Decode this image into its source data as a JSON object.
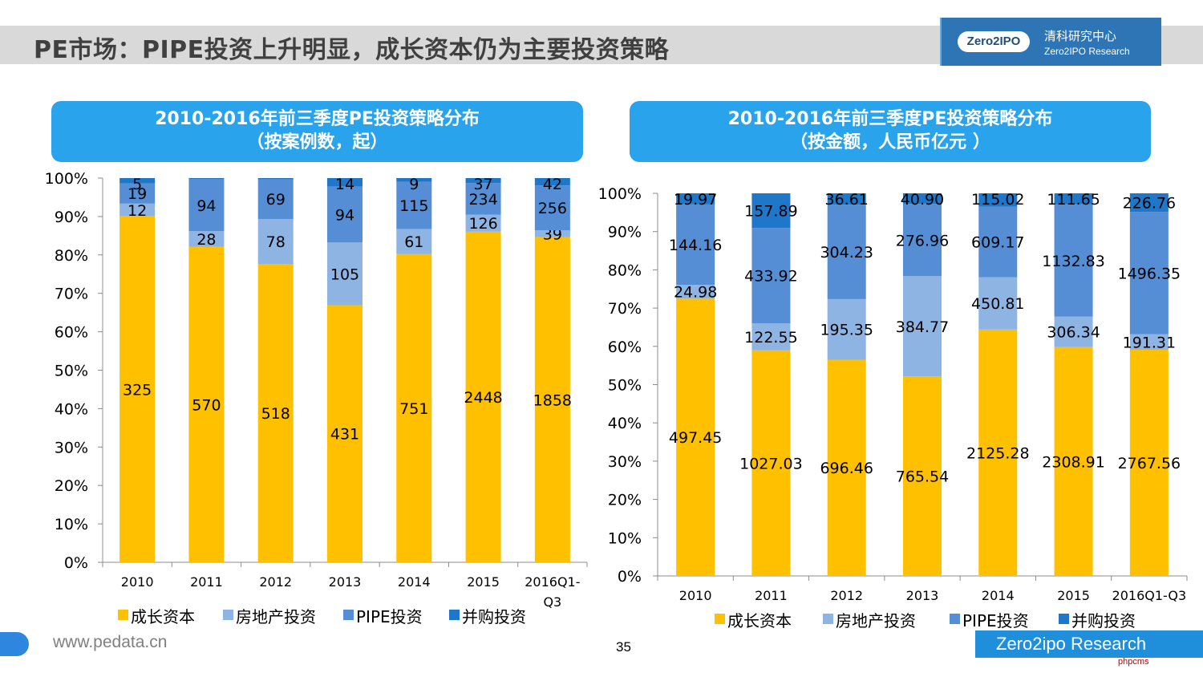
{
  "page": {
    "title": "PE市场：PIPE投资上升明显，成长资本仍为主要投资策略",
    "logo_mark": "Zero2IPO",
    "logo_cn": "清科研究中心",
    "logo_en": "Zero2IPO Research",
    "footer_url": "www.pedata.cn",
    "page_number": "35",
    "brand_bar": "Zero2ipo Research",
    "watermark": "phpcms"
  },
  "colors": {
    "growth": "#ffc000",
    "realestate": "#8eb4e3",
    "pipe": "#558ed5",
    "ma": "#1f77c9",
    "header_bg": "#29a3ec"
  },
  "chart_data": [
    {
      "type": "bar",
      "stacked": "percent",
      "title": "2010-2016年前三季度PE投资策略分布",
      "subtitle": "（按案例数，起）",
      "categories": [
        "2010",
        "2011",
        "2012",
        "2013",
        "2014",
        "2015",
        "2016Q1-Q3"
      ],
      "y_ticks": [
        "0%",
        "10%",
        "20%",
        "30%",
        "40%",
        "50%",
        "60%",
        "70%",
        "80%",
        "90%",
        "100%"
      ],
      "ylim": [
        0,
        100
      ],
      "series": [
        {
          "name": "成长资本",
          "values": [
            325,
            570,
            518,
            431,
            751,
            2448,
            1858
          ],
          "labels": [
            "325",
            "570",
            "518",
            "431",
            "751",
            "2448",
            "1858"
          ]
        },
        {
          "name": "房地产投资",
          "values": [
            12,
            28,
            78,
            105,
            61,
            126,
            39
          ],
          "labels": [
            "12",
            "28",
            "78",
            "105",
            "61",
            "126",
            "39"
          ]
        },
        {
          "name": "PIPE投资",
          "values": [
            19,
            94,
            69,
            94,
            115,
            234,
            256
          ],
          "labels": [
            "19",
            "94",
            "69",
            "94",
            "115",
            "234",
            "256"
          ]
        },
        {
          "name": "并购投资",
          "values": [
            5,
            2,
            2,
            14,
            9,
            37,
            42
          ],
          "labels": [
            "5",
            "",
            "",
            "14",
            "9",
            "37",
            "42"
          ]
        }
      ]
    },
    {
      "type": "bar",
      "stacked": "percent",
      "title": "2010-2016年前三季度PE投资策略分布",
      "subtitle": "（按金额，人民币亿元 ）",
      "categories": [
        "2010",
        "2011",
        "2012",
        "2013",
        "2014",
        "2015",
        "2016Q1-Q3"
      ],
      "y_ticks": [
        "0%",
        "10%",
        "20%",
        "30%",
        "40%",
        "50%",
        "60%",
        "70%",
        "80%",
        "90%",
        "100%"
      ],
      "ylim": [
        0,
        100
      ],
      "series": [
        {
          "name": "成长资本",
          "values": [
            497.45,
            1027.03,
            696.46,
            765.54,
            2125.28,
            2308.91,
            2767.56
          ],
          "labels": [
            "497.45",
            "1027.03",
            "696.46",
            "765.54",
            "2125.28",
            "2308.91",
            "2767.56"
          ]
        },
        {
          "name": "房地产投资",
          "values": [
            24.98,
            122.55,
            195.35,
            384.77,
            450.81,
            306.34,
            191.31
          ],
          "labels": [
            "24.98",
            "122.55",
            "195.35",
            "384.77",
            "450.81",
            "306.34",
            "191.31"
          ]
        },
        {
          "name": "PIPE投资",
          "values": [
            144.16,
            433.92,
            304.23,
            276.96,
            609.17,
            1132.83,
            1496.35
          ],
          "labels": [
            "144.16",
            "433.92",
            "304.23",
            "276.96",
            "609.17",
            "1132.83",
            "1496.35"
          ]
        },
        {
          "name": "并购投资",
          "values": [
            19.97,
            157.89,
            36.61,
            40.9,
            115.02,
            111.65,
            226.76
          ],
          "labels": [
            "19.97",
            "157.89",
            "36.61",
            "40.90",
            "115.02",
            "111.65",
            "226.76"
          ]
        }
      ]
    }
  ]
}
